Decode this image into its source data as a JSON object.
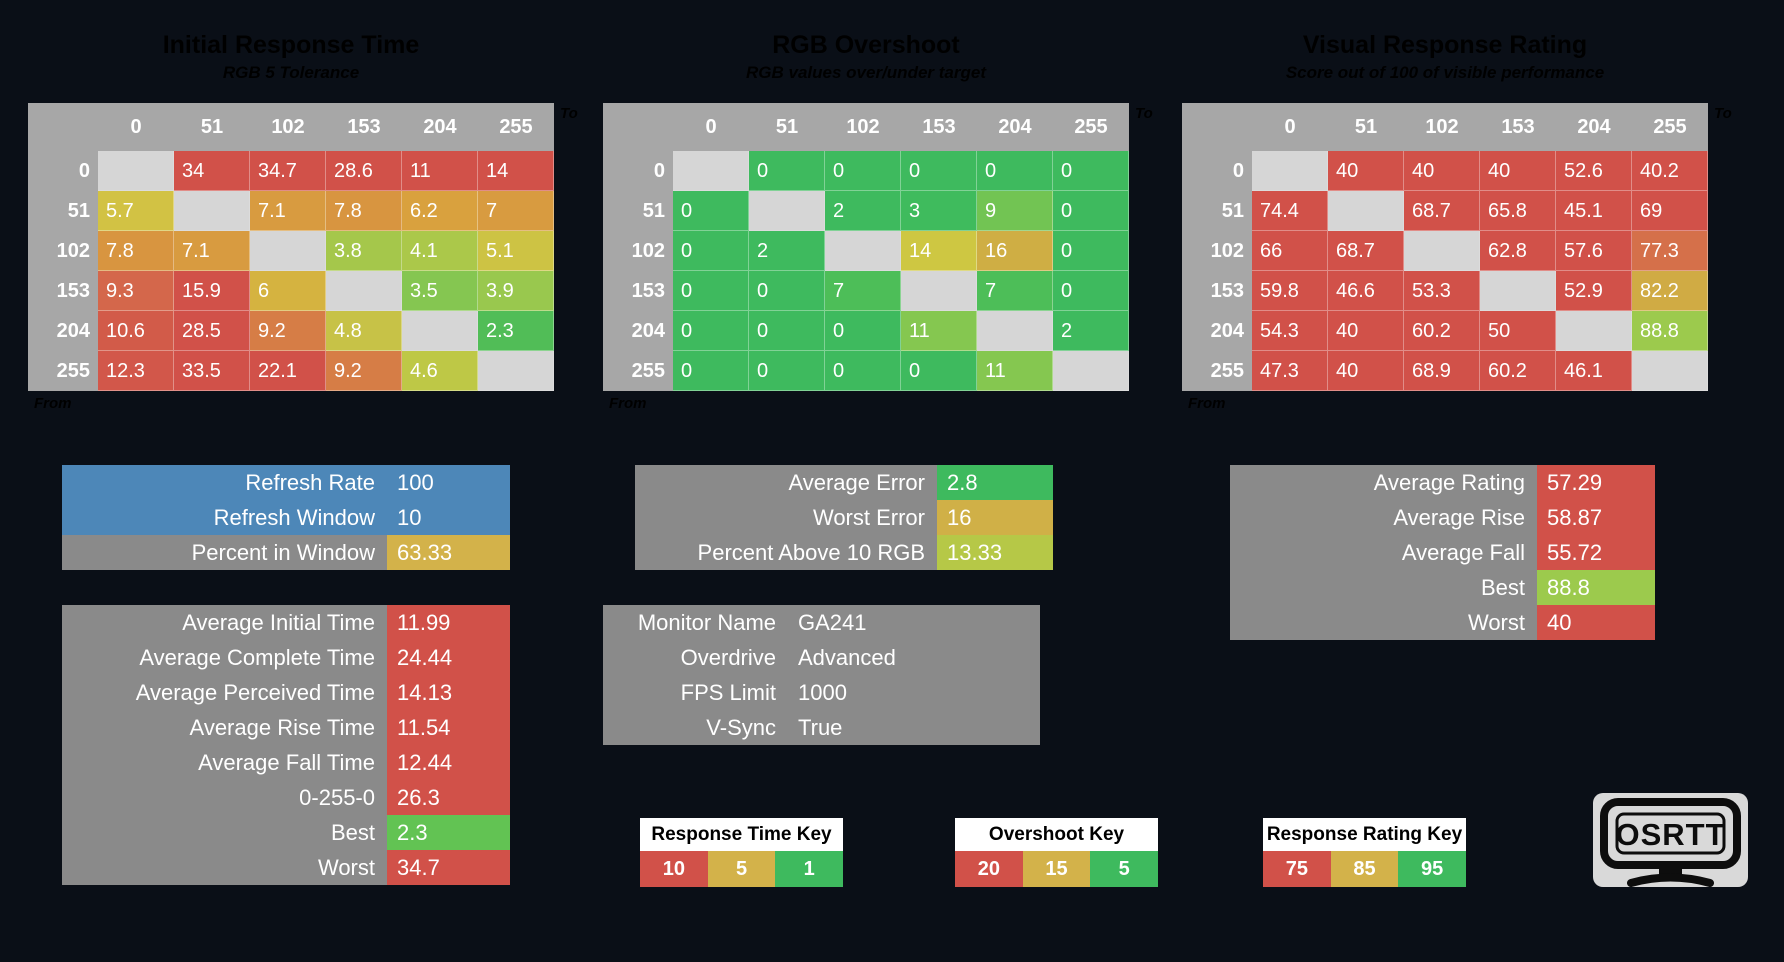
{
  "colors": {
    "background": "#0a0f17",
    "header_gray": "#a7a7a7",
    "panel_gray": "#8a8a8a",
    "diagonal_gray": "#d6d6d6",
    "red": "#d15149",
    "green": "#3eba5e",
    "gold": "#d3b24a",
    "blue": "#4d87b8",
    "key_header_white": "#ffffff"
  },
  "tables": [
    {
      "title": "Initial Response Time",
      "subtitle": "RGB 5 Tolerance",
      "to_label": "To",
      "from_label": "From",
      "cols": [
        "0",
        "51",
        "102",
        "153",
        "204",
        "255"
      ],
      "rows": [
        {
          "label": "0",
          "cells": [
            null,
            {
              "v": "34",
              "c": "#d15149"
            },
            {
              "v": "34.7",
              "c": "#d15149"
            },
            {
              "v": "28.6",
              "c": "#d15149"
            },
            {
              "v": "11",
              "c": "#d15149"
            },
            {
              "v": "14",
              "c": "#d15149"
            }
          ]
        },
        {
          "label": "51",
          "cells": [
            {
              "v": "5.7",
              "c": "#d2c244"
            },
            null,
            {
              "v": "7.1",
              "c": "#d89b40"
            },
            {
              "v": "7.8",
              "c": "#d89540"
            },
            {
              "v": "6.2",
              "c": "#d9a13e"
            },
            {
              "v": "7",
              "c": "#d89b40"
            }
          ]
        },
        {
          "label": "102",
          "cells": [
            {
              "v": "7.8",
              "c": "#d89540"
            },
            {
              "v": "7.1",
              "c": "#d89b40"
            },
            null,
            {
              "v": "3.8",
              "c": "#a5c74b"
            },
            {
              "v": "4.1",
              "c": "#abc84a"
            },
            {
              "v": "5.1",
              "c": "#cdc344"
            }
          ]
        },
        {
          "label": "153",
          "cells": [
            {
              "v": "9.3",
              "c": "#d4674b"
            },
            {
              "v": "15.9",
              "c": "#d15149"
            },
            {
              "v": "6",
              "c": "#d5b340"
            },
            null,
            {
              "v": "3.5",
              "c": "#85c651"
            },
            {
              "v": "3.9",
              "c": "#99c84e"
            }
          ]
        },
        {
          "label": "204",
          "cells": [
            {
              "v": "10.6",
              "c": "#d25b49"
            },
            {
              "v": "28.5",
              "c": "#d15149"
            },
            {
              "v": "9.2",
              "c": "#d67d46"
            },
            {
              "v": "4.8",
              "c": "#c7c247"
            },
            null,
            {
              "v": "2.3",
              "c": "#51bd57"
            }
          ]
        },
        {
          "label": "255",
          "cells": [
            {
              "v": "12.3",
              "c": "#d2574a"
            },
            {
              "v": "33.5",
              "c": "#d15149"
            },
            {
              "v": "22.1",
              "c": "#d15149"
            },
            {
              "v": "9.2",
              "c": "#d67d46"
            },
            {
              "v": "4.6",
              "c": "#bec846"
            },
            null
          ]
        }
      ]
    },
    {
      "title": "RGB Overshoot",
      "subtitle": "RGB values over/under target",
      "to_label": "To",
      "from_label": "From",
      "cols": [
        "0",
        "51",
        "102",
        "153",
        "204",
        "255"
      ],
      "rows": [
        {
          "label": "0",
          "cells": [
            null,
            {
              "v": "0",
              "c": "#3eba5e"
            },
            {
              "v": "0",
              "c": "#3eba5e"
            },
            {
              "v": "0",
              "c": "#3eba5e"
            },
            {
              "v": "0",
              "c": "#3eba5e"
            },
            {
              "v": "0",
              "c": "#3eba5e"
            }
          ]
        },
        {
          "label": "51",
          "cells": [
            {
              "v": "0",
              "c": "#3eba5e"
            },
            null,
            {
              "v": "2",
              "c": "#3eba5e"
            },
            {
              "v": "3",
              "c": "#3fbb5d"
            },
            {
              "v": "9",
              "c": "#72c453"
            },
            {
              "v": "0",
              "c": "#3eba5e"
            }
          ]
        },
        {
          "label": "102",
          "cells": [
            {
              "v": "0",
              "c": "#3eba5e"
            },
            {
              "v": "2",
              "c": "#3eba5e"
            },
            null,
            {
              "v": "14",
              "c": "#cec742"
            },
            {
              "v": "16",
              "c": "#cfae44"
            },
            {
              "v": "0",
              "c": "#3eba5e"
            }
          ]
        },
        {
          "label": "153",
          "cells": [
            {
              "v": "0",
              "c": "#3eba5e"
            },
            {
              "v": "0",
              "c": "#3eba5e"
            },
            {
              "v": "7",
              "c": "#4dbe58"
            },
            null,
            {
              "v": "7",
              "c": "#4dbe58"
            },
            {
              "v": "0",
              "c": "#3eba5e"
            }
          ]
        },
        {
          "label": "204",
          "cells": [
            {
              "v": "0",
              "c": "#3eba5e"
            },
            {
              "v": "0",
              "c": "#3eba5e"
            },
            {
              "v": "0",
              "c": "#3eba5e"
            },
            {
              "v": "11",
              "c": "#85c750"
            },
            null,
            {
              "v": "2",
              "c": "#3eba5e"
            }
          ]
        },
        {
          "label": "255",
          "cells": [
            {
              "v": "0",
              "c": "#3eba5e"
            },
            {
              "v": "0",
              "c": "#3eba5e"
            },
            {
              "v": "0",
              "c": "#3eba5e"
            },
            {
              "v": "0",
              "c": "#3eba5e"
            },
            {
              "v": "11",
              "c": "#85c750"
            },
            null
          ]
        }
      ]
    },
    {
      "title": "Visual Response Rating",
      "subtitle": "Score out of 100 of visible performance",
      "to_label": "To",
      "from_label": "From",
      "cols": [
        "0",
        "51",
        "102",
        "153",
        "204",
        "255"
      ],
      "rows": [
        {
          "label": "0",
          "cells": [
            null,
            {
              "v": "40",
              "c": "#d15149"
            },
            {
              "v": "40",
              "c": "#d15149"
            },
            {
              "v": "40",
              "c": "#d15149"
            },
            {
              "v": "52.6",
              "c": "#d15149"
            },
            {
              "v": "40.2",
              "c": "#d15149"
            }
          ]
        },
        {
          "label": "51",
          "cells": [
            {
              "v": "74.4",
              "c": "#d15149"
            },
            null,
            {
              "v": "68.7",
              "c": "#d15149"
            },
            {
              "v": "65.8",
              "c": "#d15149"
            },
            {
              "v": "45.1",
              "c": "#d15149"
            },
            {
              "v": "69",
              "c": "#d15149"
            }
          ]
        },
        {
          "label": "102",
          "cells": [
            {
              "v": "66",
              "c": "#d15149"
            },
            {
              "v": "68.7",
              "c": "#d15149"
            },
            null,
            {
              "v": "62.8",
              "c": "#d15149"
            },
            {
              "v": "57.6",
              "c": "#d15149"
            },
            {
              "v": "77.3",
              "c": "#d5704a"
            }
          ]
        },
        {
          "label": "153",
          "cells": [
            {
              "v": "59.8",
              "c": "#d15149"
            },
            {
              "v": "46.6",
              "c": "#d15149"
            },
            {
              "v": "53.3",
              "c": "#d15149"
            },
            null,
            {
              "v": "52.9",
              "c": "#d15149"
            },
            {
              "v": "82.2",
              "c": "#d0ab44"
            }
          ]
        },
        {
          "label": "204",
          "cells": [
            {
              "v": "54.3",
              "c": "#d15149"
            },
            {
              "v": "40",
              "c": "#d15149"
            },
            {
              "v": "60.2",
              "c": "#d15149"
            },
            {
              "v": "50",
              "c": "#d15149"
            },
            null,
            {
              "v": "88.8",
              "c": "#9cca4d"
            }
          ]
        },
        {
          "label": "255",
          "cells": [
            {
              "v": "47.3",
              "c": "#d15149"
            },
            {
              "v": "40",
              "c": "#d15149"
            },
            {
              "v": "68.9",
              "c": "#d15149"
            },
            {
              "v": "60.2",
              "c": "#d15149"
            },
            {
              "v": "46.1",
              "c": "#d15149"
            },
            null
          ]
        }
      ]
    }
  ],
  "panels": {
    "refresh": {
      "rows": [
        {
          "label": "Refresh Rate",
          "value": "100",
          "row_bg": "#4d87b8"
        },
        {
          "label": "Refresh Window",
          "value": "10",
          "row_bg": "#4d87b8"
        },
        {
          "label": "Percent in Window",
          "value": "63.33",
          "label_bg": "#8a8a8a",
          "value_bg": "#d3b24a"
        }
      ]
    },
    "stats": {
      "rows": [
        {
          "label": "Average Initial Time",
          "value": "11.99",
          "label_bg": "#8a8a8a",
          "value_bg": "#d15149"
        },
        {
          "label": "Average Complete Time",
          "value": "24.44",
          "label_bg": "#8a8a8a",
          "value_bg": "#d15149"
        },
        {
          "label": "Average Perceived Time",
          "value": "14.13",
          "label_bg": "#8a8a8a",
          "value_bg": "#d15149"
        },
        {
          "label": "Average Rise Time",
          "value": "11.54",
          "label_bg": "#8a8a8a",
          "value_bg": "#d15149"
        },
        {
          "label": "Average Fall Time",
          "value": "12.44",
          "label_bg": "#8a8a8a",
          "value_bg": "#d15149"
        },
        {
          "label": "0-255-0",
          "value": "26.3",
          "label_bg": "#8a8a8a",
          "value_bg": "#d15149"
        },
        {
          "label": "Best",
          "value": "2.3",
          "label_bg": "#8a8a8a",
          "value_bg": "#62c353"
        },
        {
          "label": "Worst",
          "value": "34.7",
          "label_bg": "#8a8a8a",
          "value_bg": "#d15149"
        }
      ]
    },
    "error": {
      "rows": [
        {
          "label": "Average Error",
          "value": "2.8",
          "label_bg": "#8a8a8a",
          "value_bg": "#3eba5e"
        },
        {
          "label": "Worst Error",
          "value": "16",
          "label_bg": "#8a8a8a",
          "value_bg": "#d0b047"
        },
        {
          "label": "Percent Above 10 RGB",
          "value": "13.33",
          "label_bg": "#8a8a8a",
          "value_bg": "#b6c847"
        }
      ]
    },
    "monitor": {
      "rows": [
        {
          "label": "Monitor Name",
          "value": "GA241"
        },
        {
          "label": "Overdrive",
          "value": "Advanced"
        },
        {
          "label": "FPS Limit",
          "value": "1000"
        },
        {
          "label": "V-Sync",
          "value": "True"
        }
      ]
    },
    "rating": {
      "rows": [
        {
          "label": "Average Rating",
          "value": "57.29",
          "label_bg": "#8a8a8a",
          "value_bg": "#d15149"
        },
        {
          "label": "Average Rise",
          "value": "58.87",
          "label_bg": "#8a8a8a",
          "value_bg": "#d15149"
        },
        {
          "label": "Average Fall",
          "value": "55.72",
          "label_bg": "#8a8a8a",
          "value_bg": "#d15149"
        },
        {
          "label": "Best",
          "value": "88.8",
          "label_bg": "#8a8a8a",
          "value_bg": "#9cca4d"
        },
        {
          "label": "Worst",
          "value": "40",
          "label_bg": "#8a8a8a",
          "value_bg": "#d15149"
        }
      ]
    }
  },
  "keys": [
    {
      "title": "Response Time Key",
      "cells": [
        {
          "v": "10",
          "c": "#d15149"
        },
        {
          "v": "5",
          "c": "#d3b24a"
        },
        {
          "v": "1",
          "c": "#3eba5e"
        }
      ]
    },
    {
      "title": "Overshoot Key",
      "cells": [
        {
          "v": "20",
          "c": "#d15149"
        },
        {
          "v": "15",
          "c": "#d3b24a"
        },
        {
          "v": "5",
          "c": "#3eba5e"
        }
      ]
    },
    {
      "title": "Response Rating Key",
      "cells": [
        {
          "v": "75",
          "c": "#d15149"
        },
        {
          "v": "85",
          "c": "#d3b24a"
        },
        {
          "v": "95",
          "c": "#3eba5e"
        }
      ]
    }
  ],
  "logo": {
    "text": "OSRTT"
  },
  "chart_data": [
    {
      "type": "heatmap",
      "title": "Initial Response Time",
      "subtitle": "RGB 5 Tolerance",
      "x_label": "To",
      "y_label": "From",
      "x_ticks": [
        0,
        51,
        102,
        153,
        204,
        255
      ],
      "y_ticks": [
        0,
        51,
        102,
        153,
        204,
        255
      ],
      "values": [
        [
          null,
          34,
          34.7,
          28.6,
          11,
          14
        ],
        [
          5.7,
          null,
          7.1,
          7.8,
          6.2,
          7
        ],
        [
          7.8,
          7.1,
          null,
          3.8,
          4.1,
          5.1
        ],
        [
          9.3,
          15.9,
          6,
          null,
          3.5,
          3.9
        ],
        [
          10.6,
          28.5,
          9.2,
          4.8,
          null,
          2.3
        ],
        [
          12.3,
          33.5,
          22.1,
          9.2,
          4.6,
          null
        ]
      ],
      "legend": {
        "red": 10,
        "gold": 5,
        "green": 1
      }
    },
    {
      "type": "heatmap",
      "title": "RGB Overshoot",
      "subtitle": "RGB values over/under target",
      "x_label": "To",
      "y_label": "From",
      "x_ticks": [
        0,
        51,
        102,
        153,
        204,
        255
      ],
      "y_ticks": [
        0,
        51,
        102,
        153,
        204,
        255
      ],
      "values": [
        [
          null,
          0,
          0,
          0,
          0,
          0
        ],
        [
          0,
          null,
          2,
          3,
          9,
          0
        ],
        [
          0,
          2,
          null,
          14,
          16,
          0
        ],
        [
          0,
          0,
          7,
          null,
          7,
          0
        ],
        [
          0,
          0,
          0,
          11,
          null,
          2
        ],
        [
          0,
          0,
          0,
          0,
          11,
          null
        ]
      ],
      "legend": {
        "red": 20,
        "gold": 15,
        "green": 5
      }
    },
    {
      "type": "heatmap",
      "title": "Visual Response Rating",
      "subtitle": "Score out of 100 of visible performance",
      "x_label": "To",
      "y_label": "From",
      "x_ticks": [
        0,
        51,
        102,
        153,
        204,
        255
      ],
      "y_ticks": [
        0,
        51,
        102,
        153,
        204,
        255
      ],
      "values": [
        [
          null,
          40,
          40,
          40,
          52.6,
          40.2
        ],
        [
          74.4,
          null,
          68.7,
          65.8,
          45.1,
          69
        ],
        [
          66,
          68.7,
          null,
          62.8,
          57.6,
          77.3
        ],
        [
          59.8,
          46.6,
          53.3,
          null,
          52.9,
          82.2
        ],
        [
          54.3,
          40,
          60.2,
          50,
          null,
          88.8
        ],
        [
          47.3,
          40,
          68.9,
          60.2,
          46.1,
          null
        ]
      ],
      "legend": {
        "red": 75,
        "gold": 85,
        "green": 95
      }
    }
  ]
}
